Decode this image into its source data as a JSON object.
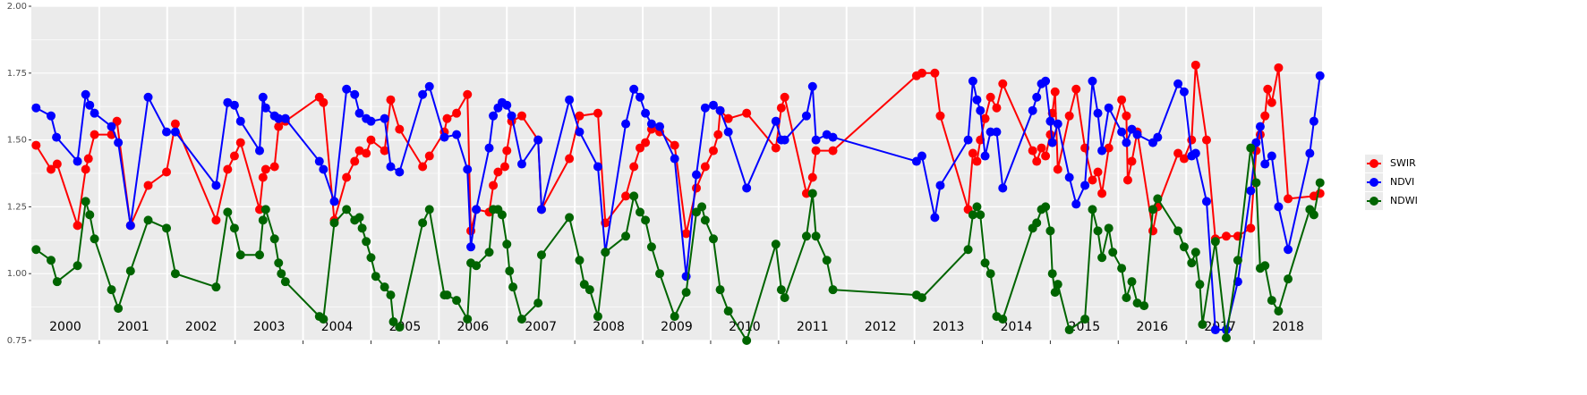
{
  "chart_data": {
    "type": "line",
    "xlim": [
      2000,
      2019
    ],
    "ylim": [
      0.75,
      2.0
    ],
    "yticks": [
      {
        "value": 0.75,
        "label": "0.75"
      },
      {
        "value": 1.0,
        "label": "1.00"
      },
      {
        "value": 1.25,
        "label": "1.25"
      },
      {
        "value": 1.5,
        "label": "1.50"
      },
      {
        "value": 1.75,
        "label": "1.75"
      },
      {
        "value": 2.0,
        "label": "2.00"
      }
    ],
    "yminor": [
      0.875,
      1.125,
      1.375,
      1.625,
      1.875
    ],
    "xticks": [
      {
        "value": 2000.5,
        "label": "2000"
      },
      {
        "value": 2001.5,
        "label": "2001"
      },
      {
        "value": 2002.5,
        "label": "2002"
      },
      {
        "value": 2003.5,
        "label": "2003"
      },
      {
        "value": 2004.5,
        "label": "2004"
      },
      {
        "value": 2005.5,
        "label": "2005"
      },
      {
        "value": 2006.5,
        "label": "2006"
      },
      {
        "value": 2007.5,
        "label": "2007"
      },
      {
        "value": 2008.5,
        "label": "2008"
      },
      {
        "value": 2009.5,
        "label": "2009"
      },
      {
        "value": 2010.5,
        "label": "2010"
      },
      {
        "value": 2011.5,
        "label": "2011"
      },
      {
        "value": 2012.5,
        "label": "2012"
      },
      {
        "value": 2013.5,
        "label": "2013"
      },
      {
        "value": 2014.5,
        "label": "2014"
      },
      {
        "value": 2015.5,
        "label": "2015"
      },
      {
        "value": 2016.5,
        "label": "2016"
      },
      {
        "value": 2017.5,
        "label": "2017"
      },
      {
        "value": 2018.5,
        "label": "2018"
      }
    ],
    "xgrid": [
      2001,
      2002,
      2003,
      2004,
      2005,
      2006,
      2007,
      2008,
      2009,
      2010,
      2011,
      2012,
      2013,
      2014,
      2015,
      2016,
      2017,
      2018
    ],
    "grid": true,
    "legend": "right",
    "series": [
      {
        "name": "SWIR",
        "color": "#ff0000",
        "x": [
          2000.07,
          2000.29,
          2000.38,
          2000.68,
          2000.8,
          2000.84,
          2000.93,
          2001.18,
          2001.26,
          2001.46,
          2001.72,
          2001.99,
          2002.12,
          2002.72,
          2002.89,
          2002.99,
          2003.08,
          2003.36,
          2003.41,
          2003.45,
          2003.58,
          2003.64,
          2003.74,
          2004.24,
          2004.3,
          2004.46,
          2004.64,
          2004.76,
          2004.83,
          2004.93,
          2005.0,
          2005.2,
          2005.29,
          2005.42,
          2005.76,
          2005.86,
          2006.08,
          2006.12,
          2006.26,
          2006.42,
          2006.47,
          2006.55,
          2006.74,
          2006.8,
          2006.87,
          2006.97,
          2007.0,
          2007.07,
          2007.22,
          2007.46,
          2007.51,
          2007.92,
          2008.07,
          2008.34,
          2008.45,
          2008.75,
          2008.87,
          2008.96,
          2009.04,
          2009.13,
          2009.25,
          2009.47,
          2009.64,
          2009.79,
          2009.92,
          2010.04,
          2010.11,
          2010.14,
          2010.26,
          2010.53,
          2010.96,
          2011.04,
          2011.09,
          2011.41,
          2011.5,
          2011.55,
          2011.8,
          2013.03,
          2013.11,
          2013.3,
          2013.38,
          2013.79,
          2013.86,
          2013.92,
          2013.97,
          2014.04,
          2014.12,
          2014.21,
          2014.3,
          2014.74,
          2014.8,
          2014.87,
          2014.93,
          2015.0,
          2015.03,
          2015.07,
          2015.11,
          2015.28,
          2015.38,
          2015.51,
          2015.62,
          2015.7,
          2015.76,
          2015.86,
          2016.05,
          2016.12,
          2016.14,
          2016.2,
          2016.28,
          2016.51,
          2016.58,
          2016.88,
          2016.97,
          2017.08,
          2017.14,
          2017.3,
          2017.43,
          2017.59,
          2017.76,
          2017.95,
          2018.03,
          2018.09,
          2018.16,
          2018.2,
          2018.26,
          2018.36,
          2018.5,
          2018.88,
          2018.97
        ],
        "values": [
          1.48,
          1.39,
          1.41,
          1.18,
          1.39,
          1.43,
          1.52,
          1.52,
          1.57,
          1.18,
          1.33,
          1.38,
          1.56,
          1.2,
          1.39,
          1.44,
          1.49,
          1.24,
          1.36,
          1.39,
          1.4,
          1.55,
          1.57,
          1.66,
          1.64,
          1.2,
          1.36,
          1.42,
          1.46,
          1.45,
          1.5,
          1.46,
          1.65,
          1.54,
          1.4,
          1.44,
          1.53,
          1.58,
          1.6,
          1.67,
          1.16,
          1.24,
          1.23,
          1.33,
          1.38,
          1.4,
          1.46,
          1.57,
          1.59,
          1.5,
          1.24,
          1.43,
          1.59,
          1.6,
          1.19,
          1.29,
          1.4,
          1.47,
          1.49,
          1.54,
          1.53,
          1.48,
          1.15,
          1.32,
          1.4,
          1.46,
          1.52,
          1.61,
          1.58,
          1.6,
          1.47,
          1.62,
          1.66,
          1.3,
          1.36,
          1.46,
          1.46,
          1.74,
          1.75,
          1.75,
          1.59,
          1.24,
          1.45,
          1.42,
          1.5,
          1.58,
          1.66,
          1.62,
          1.71,
          1.46,
          1.42,
          1.47,
          1.44,
          1.52,
          1.6,
          1.68,
          1.39,
          1.59,
          1.69,
          1.47,
          1.35,
          1.38,
          1.3,
          1.47,
          1.65,
          1.59,
          1.35,
          1.42,
          1.53,
          1.16,
          1.25,
          1.45,
          1.43,
          1.5,
          1.78,
          1.5,
          1.13,
          1.14,
          1.14,
          1.17,
          1.46,
          1.52,
          1.59,
          1.69,
          1.64,
          1.77,
          1.28,
          1.29,
          1.3
        ]
      },
      {
        "name": "NDVI",
        "color": "#0000ff",
        "x": [
          2000.07,
          2000.29,
          2000.37,
          2000.68,
          2000.8,
          2000.86,
          2000.93,
          2001.18,
          2001.28,
          2001.46,
          2001.72,
          2001.99,
          2002.12,
          2002.72,
          2002.89,
          2002.99,
          2003.08,
          2003.36,
          2003.41,
          2003.45,
          2003.58,
          2003.64,
          2003.74,
          2004.24,
          2004.3,
          2004.46,
          2004.64,
          2004.76,
          2004.83,
          2004.93,
          2005.0,
          2005.2,
          2005.29,
          2005.42,
          2005.76,
          2005.86,
          2006.08,
          2006.26,
          2006.42,
          2006.47,
          2006.55,
          2006.74,
          2006.8,
          2006.87,
          2006.93,
          2007.0,
          2007.07,
          2007.22,
          2007.46,
          2007.51,
          2007.92,
          2008.07,
          2008.34,
          2008.45,
          2008.75,
          2008.87,
          2008.96,
          2009.04,
          2009.13,
          2009.25,
          2009.47,
          2009.64,
          2009.79,
          2009.92,
          2010.04,
          2010.14,
          2010.26,
          2010.53,
          2010.96,
          2011.04,
          2011.09,
          2011.41,
          2011.5,
          2011.55,
          2011.71,
          2011.8,
          2013.03,
          2013.11,
          2013.3,
          2013.38,
          2013.79,
          2013.86,
          2013.92,
          2013.97,
          2014.04,
          2014.12,
          2014.21,
          2014.3,
          2014.74,
          2014.8,
          2014.87,
          2014.93,
          2015.0,
          2015.03,
          2015.11,
          2015.28,
          2015.38,
          2015.51,
          2015.62,
          2015.7,
          2015.76,
          2015.86,
          2016.05,
          2016.12,
          2016.2,
          2016.28,
          2016.51,
          2016.58,
          2016.88,
          2016.97,
          2017.08,
          2017.14,
          2017.3,
          2017.43,
          2017.59,
          2017.76,
          2017.95,
          2018.03,
          2018.09,
          2018.16,
          2018.26,
          2018.36,
          2018.5,
          2018.82,
          2018.88,
          2018.97
        ],
        "values": [
          1.62,
          1.59,
          1.51,
          1.42,
          1.67,
          1.63,
          1.6,
          1.55,
          1.49,
          1.18,
          1.66,
          1.53,
          1.53,
          1.33,
          1.64,
          1.63,
          1.57,
          1.46,
          1.66,
          1.62,
          1.59,
          1.58,
          1.58,
          1.42,
          1.39,
          1.27,
          1.69,
          1.67,
          1.6,
          1.58,
          1.57,
          1.58,
          1.4,
          1.38,
          1.67,
          1.7,
          1.51,
          1.52,
          1.39,
          1.1,
          1.24,
          1.47,
          1.59,
          1.62,
          1.64,
          1.63,
          1.59,
          1.41,
          1.5,
          1.24,
          1.65,
          1.53,
          1.4,
          1.08,
          1.56,
          1.69,
          1.66,
          1.6,
          1.56,
          1.55,
          1.43,
          0.99,
          1.37,
          1.62,
          1.63,
          1.61,
          1.53,
          1.32,
          1.57,
          1.5,
          1.5,
          1.59,
          1.7,
          1.5,
          1.52,
          1.51,
          1.42,
          1.44,
          1.21,
          1.33,
          1.5,
          1.72,
          1.65,
          1.61,
          1.44,
          1.53,
          1.53,
          1.32,
          1.61,
          1.66,
          1.71,
          1.72,
          1.57,
          1.49,
          1.56,
          1.36,
          1.26,
          1.33,
          1.72,
          1.6,
          1.46,
          1.62,
          1.53,
          1.49,
          1.54,
          1.52,
          1.49,
          1.51,
          1.71,
          1.68,
          1.44,
          1.45,
          1.27,
          0.79,
          0.79,
          0.97,
          1.31,
          1.49,
          1.55,
          1.41,
          1.44,
          1.25,
          1.09,
          1.45,
          1.57,
          1.74
        ]
      },
      {
        "name": "NDWI",
        "color": "#006400",
        "x": [
          2000.07,
          2000.29,
          2000.38,
          2000.68,
          2000.8,
          2000.86,
          2000.93,
          2001.18,
          2001.28,
          2001.46,
          2001.72,
          2001.99,
          2002.12,
          2002.72,
          2002.89,
          2002.99,
          2003.08,
          2003.36,
          2003.41,
          2003.45,
          2003.58,
          2003.64,
          2003.68,
          2003.74,
          2004.24,
          2004.3,
          2004.46,
          2004.64,
          2004.76,
          2004.83,
          2004.87,
          2004.93,
          2005.0,
          2005.07,
          2005.2,
          2005.29,
          2005.33,
          2005.42,
          2005.76,
          2005.86,
          2006.08,
          2006.12,
          2006.26,
          2006.42,
          2006.47,
          2006.55,
          2006.74,
          2006.8,
          2006.87,
          2006.93,
          2007.0,
          2007.04,
          2007.09,
          2007.22,
          2007.46,
          2007.51,
          2007.92,
          2008.07,
          2008.14,
          2008.22,
          2008.34,
          2008.45,
          2008.75,
          2008.87,
          2008.96,
          2009.04,
          2009.13,
          2009.25,
          2009.47,
          2009.64,
          2009.79,
          2009.87,
          2009.92,
          2010.04,
          2010.14,
          2010.26,
          2010.53,
          2010.96,
          2011.04,
          2011.09,
          2011.41,
          2011.5,
          2011.55,
          2011.71,
          2011.8,
          2013.03,
          2013.11,
          2013.79,
          2013.86,
          2013.92,
          2013.97,
          2014.04,
          2014.12,
          2014.21,
          2014.3,
          2014.74,
          2014.8,
          2014.87,
          2014.93,
          2015.0,
          2015.03,
          2015.07,
          2015.11,
          2015.28,
          2015.51,
          2015.62,
          2015.7,
          2015.76,
          2015.86,
          2015.92,
          2016.05,
          2016.12,
          2016.2,
          2016.28,
          2016.38,
          2016.51,
          2016.58,
          2016.88,
          2016.97,
          2017.08,
          2017.14,
          2017.2,
          2017.24,
          2017.43,
          2017.59,
          2017.76,
          2017.95,
          2018.03,
          2018.09,
          2018.16,
          2018.26,
          2018.36,
          2018.5,
          2018.82,
          2018.88,
          2018.97
        ],
        "values": [
          1.09,
          1.05,
          0.97,
          1.03,
          1.27,
          1.22,
          1.13,
          0.94,
          0.87,
          1.01,
          1.2,
          1.17,
          1.0,
          0.95,
          1.23,
          1.17,
          1.07,
          1.07,
          1.2,
          1.24,
          1.13,
          1.04,
          1.0,
          0.97,
          0.84,
          0.83,
          1.19,
          1.24,
          1.2,
          1.21,
          1.17,
          1.12,
          1.06,
          0.99,
          0.95,
          0.92,
          0.82,
          0.8,
          1.19,
          1.24,
          0.92,
          0.92,
          0.9,
          0.83,
          1.04,
          1.03,
          1.08,
          1.24,
          1.24,
          1.22,
          1.11,
          1.01,
          0.95,
          0.83,
          0.89,
          1.07,
          1.21,
          1.05,
          0.96,
          0.94,
          0.84,
          1.08,
          1.14,
          1.29,
          1.23,
          1.2,
          1.1,
          1.0,
          0.84,
          0.93,
          1.23,
          1.25,
          1.2,
          1.13,
          0.94,
          0.86,
          0.75,
          1.11,
          0.94,
          0.91,
          1.14,
          1.3,
          1.14,
          1.05,
          0.94,
          0.92,
          0.91,
          1.09,
          1.22,
          1.25,
          1.22,
          1.04,
          1.0,
          0.84,
          0.83,
          1.17,
          1.19,
          1.24,
          1.25,
          1.16,
          1.0,
          0.93,
          0.96,
          0.79,
          0.83,
          1.24,
          1.16,
          1.06,
          1.17,
          1.08,
          1.02,
          0.91,
          0.97,
          0.89,
          0.88,
          1.24,
          1.28,
          1.16,
          1.1,
          1.04,
          1.08,
          0.96,
          0.81,
          1.12,
          0.76,
          1.05,
          1.47,
          1.34,
          1.02,
          1.03,
          0.9,
          0.86,
          0.98,
          1.24,
          1.22,
          1.34
        ]
      }
    ]
  }
}
